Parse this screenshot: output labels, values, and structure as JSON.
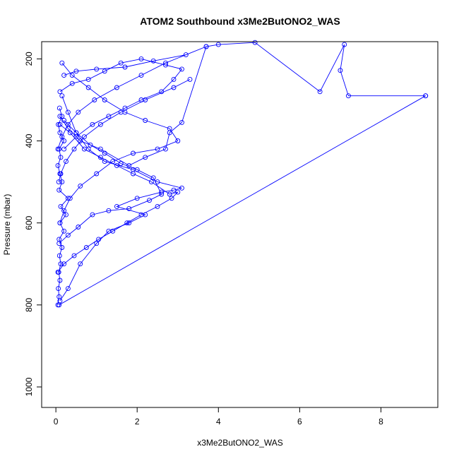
{
  "chart_data": {
    "type": "line",
    "title": "ATOM2 Southbound x3Me2ButONO2_WAS",
    "xlabel": "x3Me2ButONO2_WAS",
    "ylabel": "Pressure (mbar)",
    "xlim": [
      -0.35,
      9.4
    ],
    "ylim": [
      1050,
      158
    ],
    "y_inverted": true,
    "x_ticks": [
      0,
      2,
      4,
      6,
      8
    ],
    "y_ticks": [
      200,
      400,
      600,
      800,
      1000
    ],
    "grid": false,
    "legend": "none",
    "color": "#0000ff",
    "marker": "open-circle",
    "series": [
      {
        "x": [
          0.05,
          0.08,
          0.06,
          0.1,
          0.07,
          0.12,
          0.09,
          0.15,
          0.08,
          0.2,
          0.1,
          0.25,
          0.12,
          0.3,
          0.08,
          0.15,
          0.1,
          0.05,
          0.12,
          0.08,
          0.2,
          0.1,
          0.06,
          0.15,
          0.09
        ],
        "y": [
          800,
          780,
          760,
          740,
          720,
          700,
          680,
          660,
          640,
          620,
          600,
          580,
          560,
          540,
          520,
          500,
          480,
          460,
          440,
          420,
          400,
          380,
          360,
          340,
          320
        ]
      },
      {
        "x": [
          0.1,
          0.3,
          0.6,
          1.0,
          1.3,
          1.8,
          2.2,
          1.5,
          2.0,
          2.6,
          2.9,
          3.1,
          2.5,
          1.9,
          1.2,
          0.8,
          0.5,
          0.3,
          0.15
        ],
        "y": [
          790,
          760,
          700,
          650,
          620,
          600,
          580,
          560,
          540,
          525,
          520,
          515,
          500,
          470,
          450,
          420,
          380,
          330,
          290
        ]
      },
      {
        "x": [
          9.1,
          7.2,
          7.0,
          7.1,
          6.5,
          4.9,
          4.0,
          3.7,
          3.1,
          2.8,
          2.7,
          2.2,
          1.8,
          1.1,
          0.6,
          0.3,
          0.1
        ],
        "y": [
          290,
          290,
          228,
          165,
          280,
          160,
          165,
          170,
          355,
          380,
          420,
          440,
          460,
          420,
          400,
          370,
          340
        ]
      },
      {
        "x": [
          0.08,
          9.1
        ],
        "y": [
          800,
          290
        ]
      },
      {
        "x": [
          0.1,
          0.4,
          0.8,
          1.2,
          1.6,
          2.1,
          2.7,
          3.1,
          2.9,
          2.6,
          2.1,
          1.7,
          1.3,
          0.9,
          0.5,
          0.2
        ],
        "y": [
          280,
          260,
          250,
          230,
          210,
          200,
          215,
          225,
          250,
          280,
          300,
          320,
          340,
          360,
          390,
          420
        ]
      },
      {
        "x": [
          0.05,
          0.2,
          0.45,
          0.75,
          1.05,
          1.4,
          1.75,
          2.1,
          2.5,
          2.85,
          3.0,
          2.8,
          2.35,
          1.9,
          1.5,
          1.1,
          0.7,
          0.35,
          0.1
        ],
        "y": [
          720,
          700,
          680,
          660,
          640,
          620,
          600,
          580,
          560,
          540,
          525,
          530,
          500,
          480,
          460,
          440,
          420,
          380,
          360
        ]
      },
      {
        "x": [
          0.08,
          0.3,
          0.55,
          0.9,
          1.3,
          1.8,
          2.3,
          2.6,
          2.4,
          2.0,
          1.6,
          1.2,
          0.85,
          0.5,
          0.2
        ],
        "y": [
          650,
          630,
          610,
          580,
          570,
          565,
          545,
          530,
          490,
          470,
          455,
          430,
          410,
          380,
          350
        ]
      },
      {
        "x": [
          0.1,
          0.2,
          0.35,
          0.6,
          1.0,
          1.4,
          1.9,
          2.5,
          3.0,
          2.8,
          2.2,
          1.7,
          1.2,
          0.8,
          0.4,
          0.15
        ],
        "y": [
          600,
          570,
          540,
          510,
          480,
          450,
          430,
          420,
          400,
          370,
          350,
          330,
          300,
          270,
          240,
          210
        ]
      },
      {
        "x": [
          0.05,
          0.15,
          0.3,
          0.55,
          0.95,
          1.5,
          2.1,
          2.7,
          3.7,
          3.2,
          2.4,
          1.7,
          1.0,
          0.5,
          0.2
        ],
        "y": [
          420,
          390,
          360,
          330,
          300,
          270,
          240,
          210,
          170,
          190,
          205,
          220,
          225,
          230,
          240
        ]
      },
      {
        "x": [
          0.07,
          0.12,
          0.25,
          0.45,
          0.7,
          1.1,
          1.6,
          2.2,
          2.9,
          3.3
        ],
        "y": [
          500,
          480,
          450,
          420,
          390,
          360,
          330,
          300,
          270,
          250
        ]
      }
    ]
  }
}
